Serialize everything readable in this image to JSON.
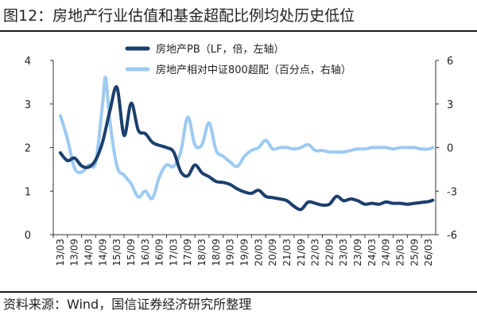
{
  "title": "图12：房地产行业估值和基金超配比例均处历史低位",
  "source": "资料来源：Wind，国信证券经济研究所整理",
  "colors": {
    "pb": "#1b3f6e",
    "overweight": "#9ccaf2",
    "axis": "#333333"
  },
  "chart_data": {
    "type": "line",
    "x_tick_labels": [
      "13/03",
      "13/09",
      "14/03",
      "14/09",
      "15/03",
      "15/09",
      "16/03",
      "16/09",
      "17/03",
      "17/09",
      "18/03",
      "18/09",
      "19/03",
      "19/09",
      "20/03",
      "20/09",
      "21/03",
      "21/09",
      "22/03",
      "22/09",
      "23/03",
      "23/09",
      "24/03",
      "24/09",
      "25/03",
      "25/09",
      "26/03"
    ],
    "left_axis": {
      "ylim": [
        0,
        4
      ],
      "ticks": [
        "0",
        "1",
        "2",
        "3",
        "4"
      ]
    },
    "right_axis": {
      "ylim": [
        -6,
        6
      ],
      "ticks": [
        "-6",
        "-3",
        "0",
        "3",
        "6"
      ]
    },
    "legend_position": "top-center",
    "series": [
      {
        "name": "房地产PB（LF，倍，左轴）",
        "axis": "left",
        "color": "#1b3f6e",
        "x": [
          0,
          0.5,
          1,
          1.5,
          2,
          2.5,
          3,
          3.5,
          4,
          4.5,
          5,
          5.5,
          6,
          6.5,
          7,
          7.5,
          8,
          8.5,
          9,
          9.5,
          10,
          10.5,
          11,
          11.5,
          12,
          12.5,
          13,
          13.5,
          14,
          14.5,
          15,
          15.5,
          16,
          16.5,
          17,
          17.5,
          18,
          18.5,
          19,
          19.5,
          20,
          20.5,
          21,
          21.5,
          22,
          22.5,
          23,
          23.5,
          24,
          24.5,
          25,
          25.5,
          26,
          26.3
        ],
        "values": [
          1.88,
          1.7,
          1.76,
          1.58,
          1.55,
          1.72,
          2.15,
          2.85,
          3.38,
          2.28,
          3.02,
          2.4,
          2.32,
          2.12,
          2.05,
          2.0,
          1.9,
          1.45,
          1.35,
          1.6,
          1.42,
          1.33,
          1.22,
          1.2,
          1.15,
          1.05,
          0.98,
          0.95,
          1.02,
          0.88,
          0.85,
          0.82,
          0.78,
          0.65,
          0.58,
          0.75,
          0.72,
          0.68,
          0.7,
          0.88,
          0.78,
          0.82,
          0.78,
          0.7,
          0.72,
          0.7,
          0.75,
          0.72,
          0.72,
          0.7,
          0.72,
          0.74,
          0.76,
          0.79
        ]
      },
      {
        "name": "房地产相对中证800超配（百分点，右轴）",
        "axis": "right",
        "color": "#9ccaf2",
        "x": [
          0,
          0.5,
          1,
          1.5,
          2,
          2.5,
          3,
          3.2,
          3.5,
          4,
          4.5,
          5,
          5.5,
          6,
          6.5,
          7,
          7.5,
          8,
          8.5,
          9,
          9.5,
          10,
          10.5,
          11,
          11.5,
          12,
          12.5,
          13,
          13.5,
          14,
          14.5,
          15,
          15.5,
          16,
          16.5,
          17,
          17.5,
          18,
          18.5,
          19,
          19.5,
          20,
          20.5,
          21,
          21.5,
          22,
          22.5,
          23,
          23.5,
          24,
          24.5,
          25,
          25.5,
          26,
          26.3
        ],
        "values": [
          2.2,
          0.6,
          -1.4,
          -1.7,
          -1.2,
          -1.0,
          3.2,
          4.8,
          1.8,
          -1.3,
          -1.9,
          -2.5,
          -3.4,
          -3.0,
          -3.5,
          -2.0,
          -1.2,
          -1.3,
          -0.3,
          2.1,
          0.2,
          0.2,
          1.7,
          -0.2,
          -0.6,
          -1.0,
          -1.3,
          -0.6,
          -0.2,
          0.0,
          0.5,
          -0.1,
          0.0,
          0.0,
          -0.1,
          0.0,
          0.2,
          -0.2,
          -0.2,
          -0.3,
          -0.3,
          -0.3,
          -0.2,
          -0.1,
          -0.1,
          0.0,
          0.0,
          0.0,
          -0.1,
          0.0,
          0.0,
          0.0,
          -0.1,
          -0.1,
          0.0
        ]
      }
    ]
  }
}
